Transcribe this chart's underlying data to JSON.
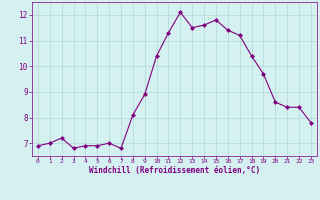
{
  "x": [
    0,
    1,
    2,
    3,
    4,
    5,
    6,
    7,
    8,
    9,
    10,
    11,
    12,
    13,
    14,
    15,
    16,
    17,
    18,
    19,
    20,
    21,
    22,
    23
  ],
  "y": [
    6.9,
    7.0,
    7.2,
    6.8,
    6.9,
    6.9,
    7.0,
    6.8,
    8.1,
    8.9,
    10.4,
    11.3,
    12.1,
    11.5,
    11.6,
    11.8,
    11.4,
    11.2,
    10.4,
    9.7,
    8.6,
    8.4,
    8.4,
    7.8
  ],
  "line_color": "#800080",
  "marker": "D",
  "marker_size": 2.0,
  "bg_color": "#d4f0f0",
  "grid_color": "#b0d8d8",
  "xlabel": "Windchill (Refroidissement éolien,°C)",
  "xlabel_color": "#800080",
  "tick_color": "#800080",
  "ylim": [
    6.5,
    12.5
  ],
  "xlim": [
    -0.5,
    23.5
  ],
  "yticks": [
    7,
    8,
    9,
    10,
    11,
    12
  ],
  "xticks": [
    0,
    1,
    2,
    3,
    4,
    5,
    6,
    7,
    8,
    9,
    10,
    11,
    12,
    13,
    14,
    15,
    16,
    17,
    18,
    19,
    20,
    21,
    22,
    23
  ]
}
